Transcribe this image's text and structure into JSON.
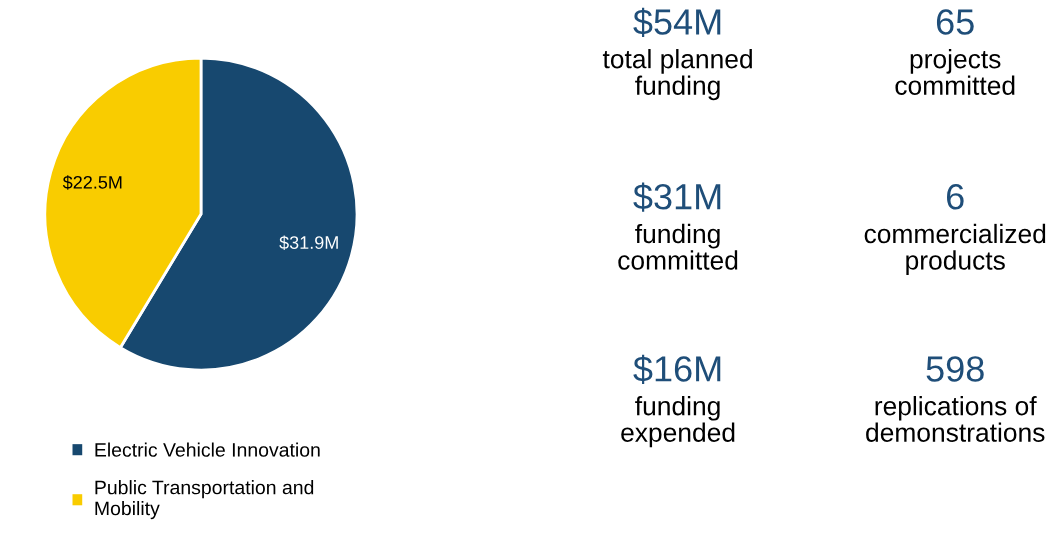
{
  "chart_data": [
    {
      "type": "pie",
      "categories": [
        "Electric Vehicle Innovation",
        "Public Transportation and Mobility"
      ],
      "values": [
        31.9,
        22.5
      ],
      "colors": [
        "#17486f",
        "#f9cc00"
      ],
      "value_labels": [
        "$31.9M",
        "$22.5M"
      ],
      "legend": "bottom"
    },
    {
      "type": "other",
      "annotations": [
        "$54M",
        "total planned\nfunding",
        "65",
        "projects\ncommitted",
        "$31M",
        "funding\ncommitted",
        "6",
        "commercialized\nproducts",
        "$16M",
        "funding\nexpended",
        "598",
        "replications of\ndemonstrations"
      ]
    }
  ]
}
